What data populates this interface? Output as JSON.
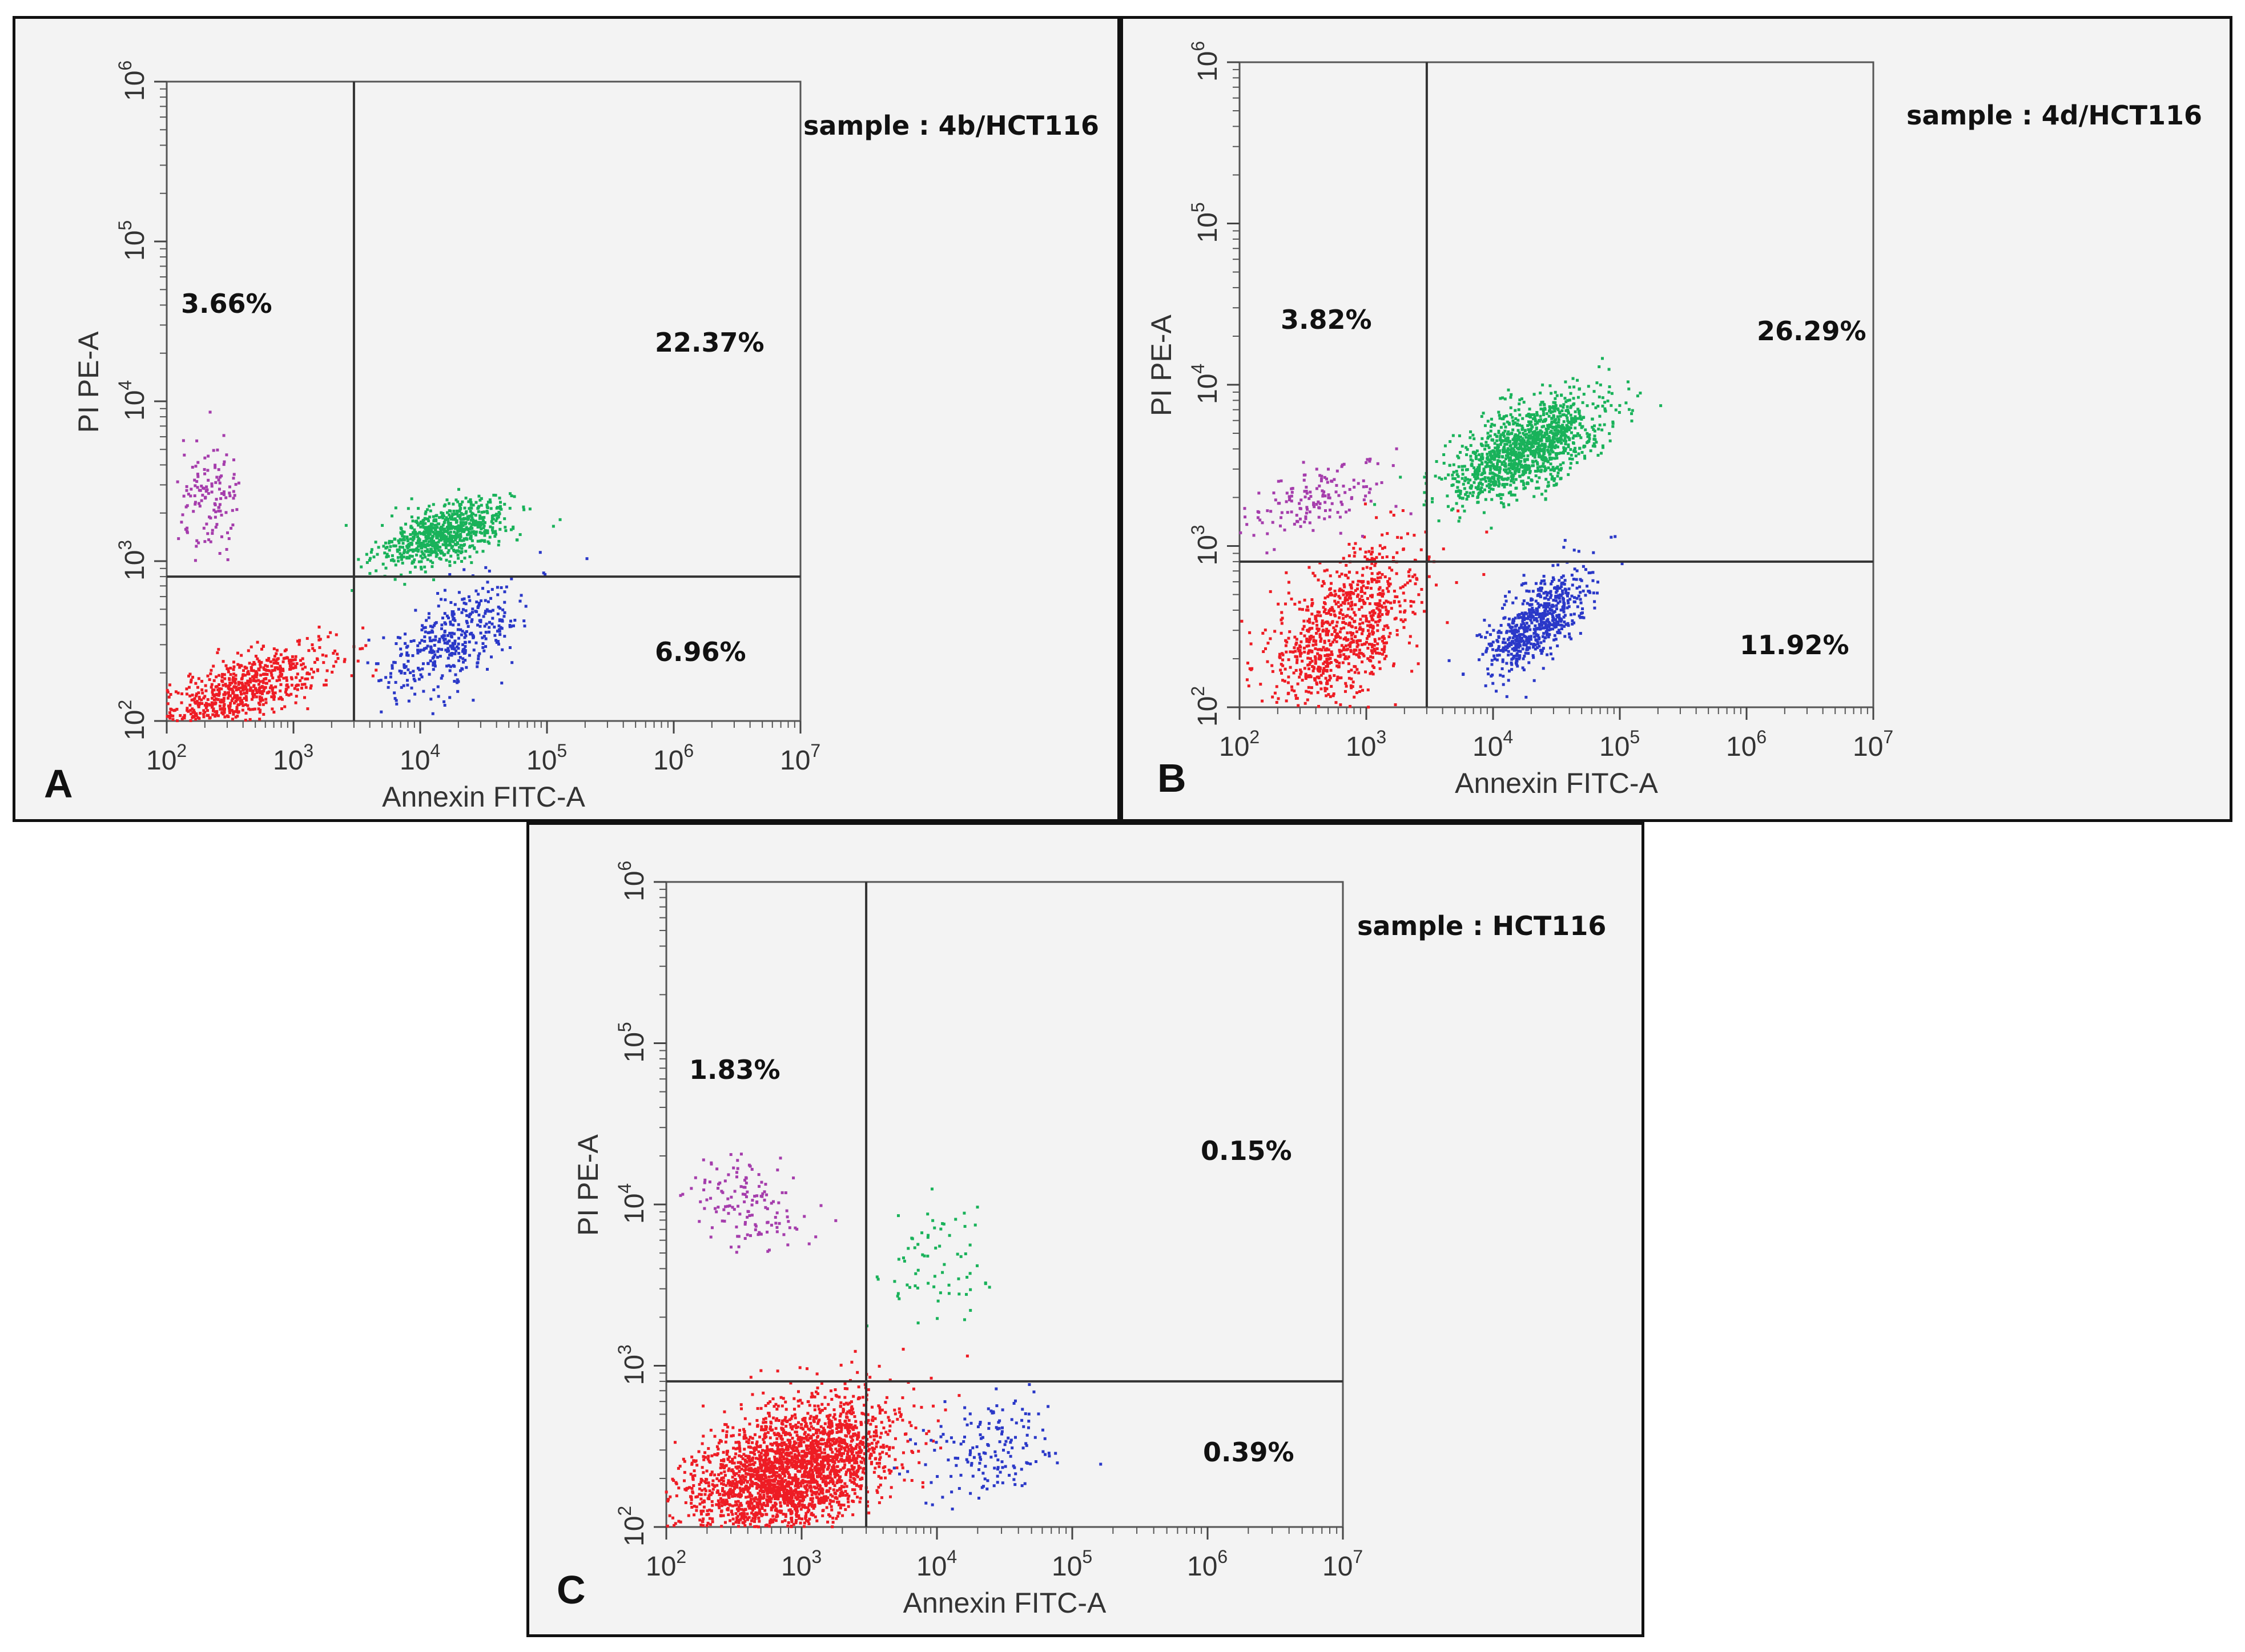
{
  "figure": {
    "panels": [
      {
        "id": "A",
        "letter": "A",
        "sample_label": "sample : 4b/HCT116",
        "quadrants": {
          "upper_left": "3.66%",
          "upper_right": "22.37%",
          "lower_right": "6.96%"
        }
      },
      {
        "id": "B",
        "letter": "B",
        "sample_label": "sample : 4d/HCT116",
        "quadrants": {
          "upper_left": "3.82%",
          "upper_right": "26.29%",
          "lower_right": "11.92%"
        }
      },
      {
        "id": "C",
        "letter": "C",
        "sample_label": "sample : HCT116",
        "quadrants": {
          "upper_left": "1.83%",
          "upper_right": "0.15%",
          "lower_right": "0.39%"
        }
      }
    ]
  },
  "colors": {
    "live": "#ee1c24",
    "necrotic": "#a53dac",
    "late_apoptotic": "#19b25a",
    "early_apoptotic": "#2a38c8",
    "panel_bg": "#f3f3f3",
    "gate_line": "#333333"
  },
  "chart_data": [
    {
      "type": "scatter",
      "title": "sample : 4b/HCT116",
      "xlabel": "Annexin FITC-A",
      "ylabel": "PI PE-A",
      "x_scale": "log",
      "y_scale": "log",
      "xlim": [
        100,
        10000000
      ],
      "ylim": [
        100,
        1000000
      ],
      "x_ticks": [
        "10^2",
        "10^3",
        "10^4",
        "10^5",
        "10^6",
        "10^7"
      ],
      "y_ticks": [
        "10^2",
        "10^3",
        "10^4",
        "10^5",
        "10^6"
      ],
      "gates": {
        "x": 3000,
        "y": 800
      },
      "quadrant_percent": {
        "upper_left": 3.66,
        "upper_right": 22.37,
        "lower_right": 6.96
      },
      "clusters": [
        {
          "name": "live",
          "color": "#ee1c24",
          "n": 700,
          "cx": 400,
          "cy": 160,
          "sx": 0.35,
          "sy": 0.14,
          "corr": 0.7
        },
        {
          "name": "necrotic",
          "color": "#a53dac",
          "n": 130,
          "cx": 220,
          "cy": 2300,
          "sx": 0.12,
          "sy": 0.18,
          "corr": 0
        },
        {
          "name": "late_apoptotic",
          "color": "#19b25a",
          "n": 750,
          "cx": 16000,
          "cy": 1500,
          "sx": 0.25,
          "sy": 0.1,
          "corr": 0.55
        },
        {
          "name": "early_apoptotic",
          "color": "#2a38c8",
          "n": 400,
          "cx": 18000,
          "cy": 320,
          "sx": 0.28,
          "sy": 0.18,
          "corr": 0.6
        }
      ]
    },
    {
      "type": "scatter",
      "title": "sample : 4d/HCT116",
      "xlabel": "Annexin FITC-A",
      "ylabel": "PI PE-A",
      "x_scale": "log",
      "y_scale": "log",
      "xlim": [
        100,
        10000000
      ],
      "ylim": [
        100,
        1000000
      ],
      "x_ticks": [
        "10^2",
        "10^3",
        "10^4",
        "10^5",
        "10^6",
        "10^7"
      ],
      "y_ticks": [
        "10^2",
        "10^3",
        "10^4",
        "10^5",
        "10^6"
      ],
      "gates": {
        "x": 3000,
        "y": 800
      },
      "quadrant_percent": {
        "upper_left": 3.82,
        "upper_right": 26.29,
        "lower_right": 11.92
      },
      "clusters": [
        {
          "name": "live",
          "color": "#ee1c24",
          "n": 900,
          "cx": 650,
          "cy": 300,
          "sx": 0.3,
          "sy": 0.25,
          "corr": 0.5
        },
        {
          "name": "necrotic",
          "color": "#a53dac",
          "n": 150,
          "cx": 450,
          "cy": 2000,
          "sx": 0.28,
          "sy": 0.12,
          "corr": 0.5
        },
        {
          "name": "late_apoptotic",
          "color": "#19b25a",
          "n": 1300,
          "cx": 18000,
          "cy": 4000,
          "sx": 0.3,
          "sy": 0.17,
          "corr": 0.6
        },
        {
          "name": "early_apoptotic",
          "color": "#2a38c8",
          "n": 650,
          "cx": 22000,
          "cy": 330,
          "sx": 0.2,
          "sy": 0.16,
          "corr": 0.7
        }
      ]
    },
    {
      "type": "scatter",
      "title": "sample : HCT116",
      "xlabel": "Annexin FITC-A",
      "ylabel": "PI PE-A",
      "x_scale": "log",
      "y_scale": "log",
      "xlim": [
        100,
        10000000
      ],
      "ylim": [
        100,
        1000000
      ],
      "x_ticks": [
        "10^2",
        "10^3",
        "10^4",
        "10^5",
        "10^6",
        "10^7"
      ],
      "y_ticks": [
        "10^2",
        "10^3",
        "10^4",
        "10^5",
        "10^6"
      ],
      "gates": {
        "x": 3000,
        "y": 800
      },
      "quadrant_percent": {
        "upper_left": 1.83,
        "upper_right": 0.15,
        "lower_right": 0.39
      },
      "clusters": [
        {
          "name": "live",
          "color": "#ee1c24",
          "n": 2600,
          "cx": 800,
          "cy": 220,
          "sx": 0.38,
          "sy": 0.22,
          "corr": 0.45
        },
        {
          "name": "necrotic",
          "color": "#a53dac",
          "n": 140,
          "cx": 400,
          "cy": 10000,
          "sx": 0.22,
          "sy": 0.14,
          "corr": -0.3
        },
        {
          "name": "late_apoptotic",
          "color": "#19b25a",
          "n": 70,
          "cx": 10000,
          "cy": 5000,
          "sx": 0.22,
          "sy": 0.2,
          "corr": 0
        },
        {
          "name": "early_apoptotic",
          "color": "#2a38c8",
          "n": 160,
          "cx": 25000,
          "cy": 300,
          "sx": 0.25,
          "sy": 0.15,
          "corr": 0.2
        }
      ]
    }
  ]
}
